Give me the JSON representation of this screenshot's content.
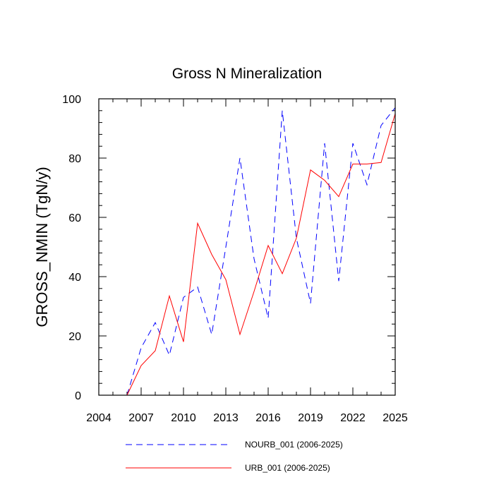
{
  "chart_data": {
    "type": "line",
    "title": "Gross N Mineralization",
    "xlabel": "",
    "ylabel": "GROSS_NMIN  (TgN/y)",
    "xlim": [
      2004,
      2025
    ],
    "ylim": [
      0,
      100
    ],
    "x_ticks": [
      2004,
      2007,
      2010,
      2013,
      2016,
      2019,
      2022,
      2025
    ],
    "y_ticks": [
      0,
      20,
      40,
      60,
      80,
      100
    ],
    "x": [
      2006,
      2007,
      2008,
      2009,
      2010,
      2011,
      2012,
      2013,
      2014,
      2015,
      2016,
      2017,
      2018,
      2019,
      2020,
      2021,
      2022,
      2023,
      2024,
      2025
    ],
    "series": [
      {
        "name": "NOURB_001 (2006-2025)",
        "color": "#0000ff",
        "dash": "dashed",
        "values": [
          0,
          16,
          24.5,
          13.5,
          33,
          36.5,
          20.5,
          50,
          80,
          46,
          26,
          96,
          53,
          31,
          85,
          38.5,
          85,
          71,
          91,
          97
        ]
      },
      {
        "name": "URB_001 (2006-2025)",
        "color": "#ff0000",
        "dash": "solid",
        "values": [
          0,
          10,
          15,
          33.5,
          18,
          58,
          47.5,
          39,
          20.5,
          35,
          50.5,
          41,
          53,
          76,
          72.5,
          67,
          78,
          78,
          78.5,
          95
        ]
      }
    ],
    "legend_position": "bottom"
  }
}
